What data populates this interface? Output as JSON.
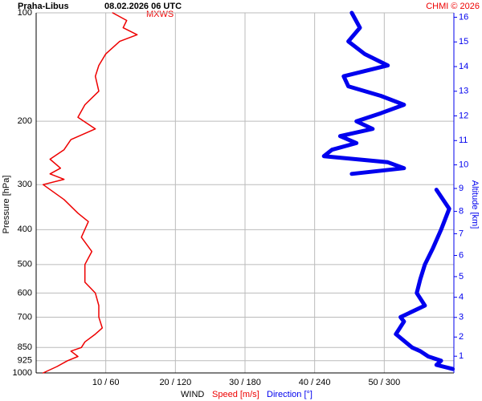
{
  "chart_data": {
    "type": "line",
    "title": "Praha-Libus",
    "subtitle": "08.02.2026 06 UTC",
    "credit": "CHMI © 2026",
    "annotation": "MXWS",
    "xlabel": "WIND",
    "ylabel": "Pressure [hPa]",
    "y2label": "Altitude [km]",
    "log_y": true,
    "grid": true,
    "ylim": [
      1000,
      100
    ],
    "yticks": [
      100,
      200,
      300,
      400,
      500,
      600,
      700,
      850,
      925,
      1000
    ],
    "xlim": [
      0,
      60
    ],
    "x2lim": [
      0,
      360
    ],
    "xticks": [
      {
        "value": 10,
        "label": "10 / 60"
      },
      {
        "value": 20,
        "label": "20 / 120"
      },
      {
        "value": 30,
        "label": "30 / 180"
      },
      {
        "value": 40,
        "label": "40 / 240"
      },
      {
        "value": 50,
        "label": "50 / 300"
      }
    ],
    "y2ticks": [
      1,
      2,
      3,
      4,
      5,
      6,
      7,
      8,
      9,
      10,
      11,
      12,
      13,
      14,
      15,
      16
    ],
    "y2color": "#0000ee",
    "series": [
      {
        "name": "Speed [m/s]",
        "color": "#ee0000",
        "width": 1.5,
        "axis": "x",
        "pressure": [
          1000,
          960,
          925,
          900,
          870,
          850,
          820,
          780,
          750,
          700,
          650,
          600,
          560,
          500,
          460,
          420,
          380,
          360,
          330,
          300,
          290,
          280,
          270,
          255,
          240,
          225,
          210,
          195,
          180,
          165,
          150,
          140,
          130,
          120,
          115,
          110,
          105,
          100
        ],
        "values": [
          1,
          3,
          4.5,
          6,
          5,
          6.5,
          7,
          8.5,
          9.5,
          9,
          9,
          8.5,
          7,
          7,
          8,
          6.5,
          7.5,
          6,
          4,
          1,
          4,
          2,
          3.5,
          2,
          4,
          5,
          8.5,
          6,
          7,
          9,
          8.5,
          9,
          10,
          12,
          14.5,
          12.5,
          13,
          11
        ]
      },
      {
        "name": "Direction [°]",
        "color": "#0000ee",
        "width": 5,
        "axis": "x2",
        "pressure": [
          975,
          950,
          925,
          900,
          870,
          850,
          780,
          720,
          700,
          650,
          600,
          550,
          500,
          450,
          400,
          350,
          310,
          290,
          280,
          270,
          260,
          250,
          240,
          230,
          220,
          210,
          200,
          190,
          180,
          170,
          160,
          150,
          140,
          130,
          120,
          110,
          100
        ],
        "values": [
          359,
          345,
          349,
          338,
          331,
          324,
          310,
          317,
          314,
          335,
          328,
          331,
          335,
          342,
          349,
          356,
          345,
          null,
          272,
          317,
          303,
          248,
          255,
          276,
          262,
          290,
          276,
          297,
          317,
          297,
          269,
          265,
          303,
          283,
          269,
          279,
          272
        ]
      }
    ]
  }
}
